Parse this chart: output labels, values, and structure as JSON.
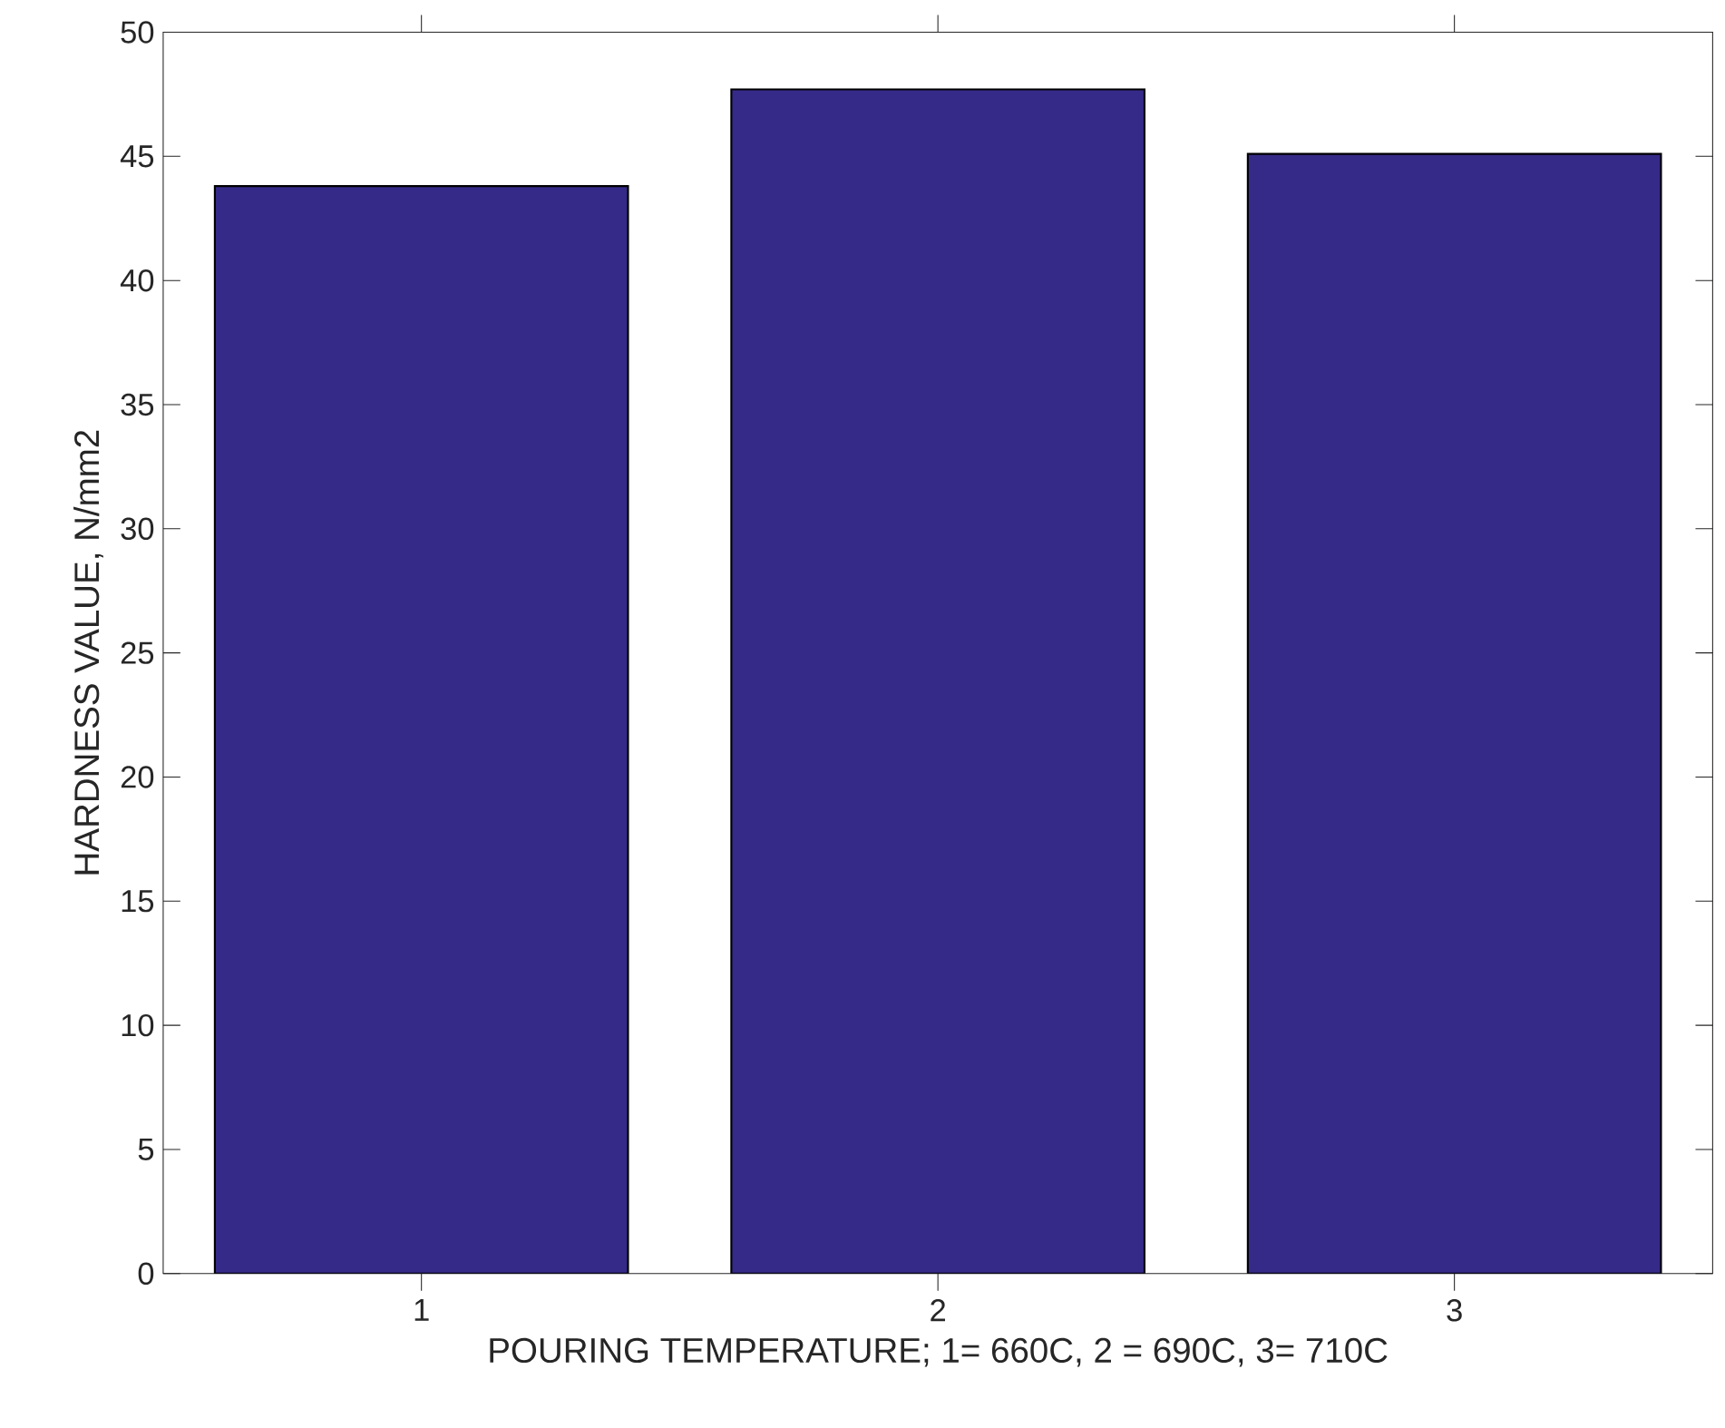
{
  "chart_data": {
    "type": "bar",
    "xlabel": "POURING TEMPERATURE; 1= 660C, 2 = 690C, 3= 710C",
    "ylabel": "HARDNESS VALUE, N/mm2",
    "categories": [
      "1",
      "2",
      "3"
    ],
    "values": [
      43.8,
      47.7,
      45.1
    ],
    "color": "#352a87",
    "ylim": [
      0,
      50
    ],
    "yticks": [
      0,
      5,
      10,
      15,
      20,
      25,
      30,
      35,
      40,
      45,
      50
    ]
  }
}
